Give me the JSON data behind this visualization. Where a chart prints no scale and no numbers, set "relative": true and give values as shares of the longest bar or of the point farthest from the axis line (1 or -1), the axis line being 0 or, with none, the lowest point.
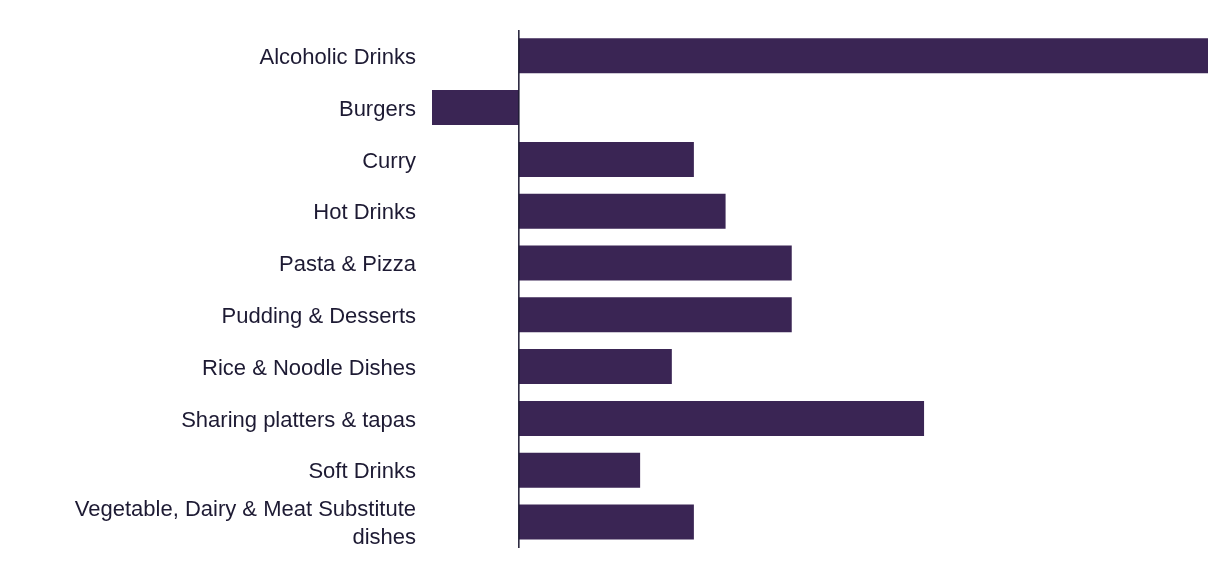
{
  "chart_data": {
    "type": "bar",
    "orientation": "horizontal",
    "relative": true,
    "categories": [
      "Alcoholic Drinks",
      "Burgers",
      "Curry",
      "Hot Drinks",
      "Pasta & Pizza",
      "Pudding & Desserts",
      "Rice & Noodle Dishes",
      "Sharing platters & tapas",
      "Soft Drinks",
      "Vegetable, Dairy & Meat Substitute dishes"
    ],
    "values": [
      1,
      -0.126,
      0.254,
      0.3,
      0.396,
      0.396,
      0.222,
      0.588,
      0.176,
      0.254
    ],
    "color": "#3a2554",
    "grid": false,
    "legend": false
  }
}
